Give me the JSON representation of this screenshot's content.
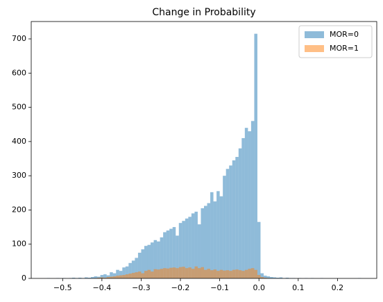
{
  "chart_data": {
    "type": "histogram",
    "title": "Change in Probability",
    "bins": [
      -0.54,
      -0.532,
      -0.524,
      -0.516,
      -0.508,
      -0.5,
      -0.492,
      -0.484,
      -0.476,
      -0.468,
      -0.46,
      -0.452,
      -0.444,
      -0.436,
      -0.428,
      -0.42,
      -0.412,
      -0.404,
      -0.396,
      -0.388,
      -0.38,
      -0.372,
      -0.364,
      -0.356,
      -0.348,
      -0.34,
      -0.332,
      -0.324,
      -0.316,
      -0.308,
      -0.3,
      -0.292,
      -0.284,
      -0.276,
      -0.268,
      -0.26,
      -0.252,
      -0.244,
      -0.236,
      -0.228,
      -0.22,
      -0.212,
      -0.204,
      -0.196,
      -0.188,
      -0.18,
      -0.172,
      -0.164,
      -0.156,
      -0.148,
      -0.14,
      -0.132,
      -0.124,
      -0.116,
      -0.108,
      -0.1,
      -0.092,
      -0.084,
      -0.076,
      -0.068,
      -0.06,
      -0.052,
      -0.044,
      -0.036,
      -0.028,
      -0.02,
      -0.012,
      -0.004,
      0.004,
      0.012,
      0.02,
      0.028,
      0.036,
      0.044,
      0.052,
      0.06,
      0.068,
      0.076,
      0.084,
      0.092,
      0.1,
      0.108,
      0.116,
      0.124,
      0.132,
      0.14,
      0.148,
      0.156,
      0.164,
      0.172,
      0.18,
      0.188,
      0.196,
      0.204,
      0.212,
      0.22,
      0.228,
      0.236,
      0.244,
      0.252,
      0.26
    ],
    "series": [
      {
        "name": "MOR=0",
        "color": "#1f77b4",
        "values": [
          1,
          0,
          0,
          1,
          0,
          1,
          0,
          1,
          2,
          1,
          2,
          1,
          3,
          2,
          4,
          6,
          5,
          10,
          12,
          9,
          18,
          15,
          25,
          22,
          32,
          35,
          45,
          52,
          60,
          75,
          85,
          95,
          98,
          105,
          112,
          108,
          120,
          135,
          140,
          145,
          150,
          125,
          162,
          168,
          175,
          180,
          190,
          195,
          158,
          205,
          212,
          220,
          252,
          225,
          255,
          240,
          300,
          320,
          330,
          345,
          355,
          380,
          410,
          440,
          430,
          460,
          715,
          165,
          15,
          8,
          6,
          4,
          3,
          2,
          3,
          1,
          2,
          1,
          1,
          0,
          1,
          0,
          1,
          0,
          1,
          0,
          0,
          1,
          0,
          0,
          0,
          0,
          0,
          0,
          0,
          0,
          0,
          0,
          0,
          1
        ]
      },
      {
        "name": "MOR=1",
        "color": "#ff7f0e",
        "values": [
          0,
          0,
          0,
          0,
          0,
          0,
          0,
          0,
          0,
          0,
          0,
          0,
          0,
          0,
          0,
          1,
          2,
          3,
          2,
          4,
          5,
          6,
          8,
          9,
          10,
          12,
          14,
          16,
          18,
          20,
          15,
          22,
          25,
          20,
          27,
          26,
          28,
          30,
          29,
          31,
          32,
          30,
          33,
          34,
          30,
          32,
          28,
          35,
          30,
          33,
          25,
          28,
          24,
          26,
          22,
          25,
          23,
          24,
          22,
          25,
          26,
          24,
          22,
          25,
          28,
          30,
          25,
          10,
          4,
          2,
          1,
          0,
          0,
          0,
          0,
          0,
          0,
          0,
          0,
          0,
          0,
          0,
          0,
          0,
          0,
          0,
          0,
          0,
          0,
          0,
          0,
          0,
          0,
          0,
          0,
          0,
          0,
          0,
          0,
          0
        ]
      }
    ],
    "xlim": [
      -0.58,
      0.3
    ],
    "ylim": [
      0,
      750.75
    ],
    "xticks": [
      {
        "value": -0.5,
        "label": "−0.5"
      },
      {
        "value": -0.4,
        "label": "−0.4"
      },
      {
        "value": -0.3,
        "label": "−0.3"
      },
      {
        "value": -0.2,
        "label": "−0.2"
      },
      {
        "value": -0.1,
        "label": "−0.1"
      },
      {
        "value": 0,
        "label": "0.0"
      },
      0.1,
      0.2
    ],
    "yticks": [
      0,
      100,
      200,
      300,
      400,
      500,
      600,
      700
    ],
    "legend": "upper right",
    "opacity": 0.5
  }
}
